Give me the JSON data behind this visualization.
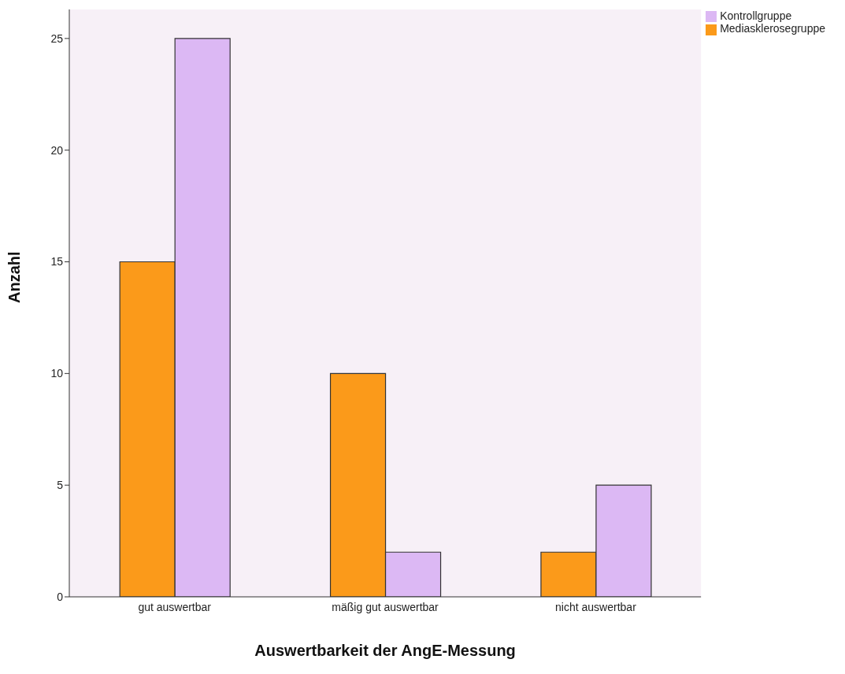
{
  "chart_data": {
    "type": "bar",
    "xlabel": "Auswertbarkeit der AngE-Messung",
    "ylabel": "Anzahl",
    "categories": [
      "gut auswertbar",
      "mäßig gut auswertbar",
      "nicht auswertbar"
    ],
    "series": [
      {
        "name": "Mediasklerosegruppe",
        "color": "#fb9a1a",
        "values": [
          15,
          10,
          2
        ]
      },
      {
        "name": "Kontrollgruppe",
        "color": "#dcb8f4",
        "values": [
          25,
          2,
          5
        ]
      }
    ],
    "ylim": [
      0,
      26.3
    ],
    "yticks": [
      0,
      5,
      10,
      15,
      20,
      25
    ],
    "grid": false,
    "legend": "top right"
  }
}
